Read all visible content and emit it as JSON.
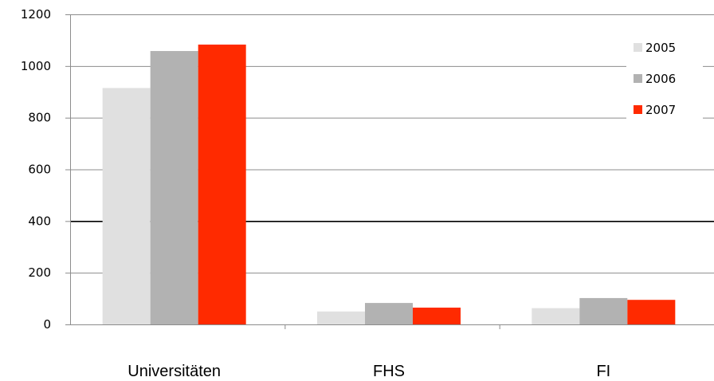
{
  "chart_data": {
    "type": "bar",
    "categories": [
      "Universitäten",
      "FHS",
      "FI"
    ],
    "series": [
      {
        "name": "2005",
        "values": [
          915,
          50,
          63
        ],
        "color": "#e0e0e0"
      },
      {
        "name": "2006",
        "values": [
          1058,
          83,
          102
        ],
        "color": "#b2b2b2"
      },
      {
        "name": "2007",
        "values": [
          1083,
          65,
          95
        ],
        "color": "#ff2a00"
      }
    ],
    "ylim": [
      0,
      1200
    ],
    "yticks": [
      "0",
      "200",
      "400",
      "600",
      "800",
      "1000",
      "1200"
    ],
    "grid": true,
    "legend_position": "top-right",
    "title": "",
    "xlabel": "",
    "ylabel": ""
  }
}
